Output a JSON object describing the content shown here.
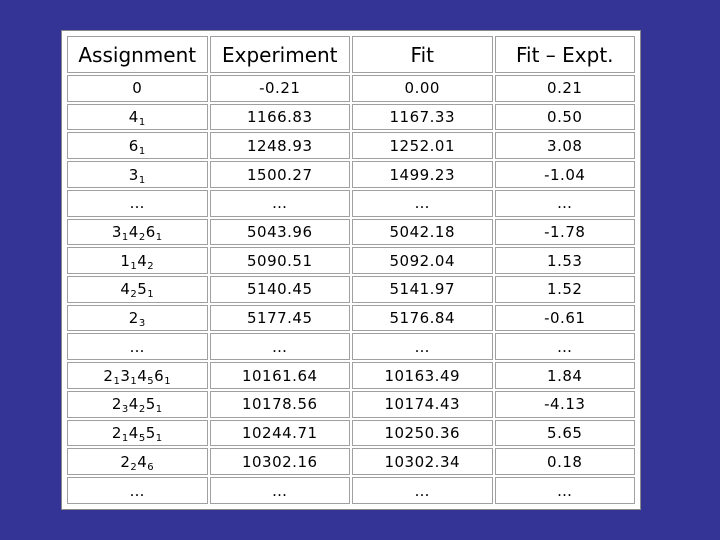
{
  "table": {
    "headers": [
      "Assignment",
      "Experiment",
      "Fit",
      "Fit – Expt."
    ],
    "rows": [
      {
        "assignment": [
          [
            "0",
            ""
          ]
        ],
        "experiment": "-0.21",
        "fit": "0.00",
        "diff": "0.21"
      },
      {
        "assignment": [
          [
            "4",
            "1"
          ]
        ],
        "experiment": "1166.83",
        "fit": "1167.33",
        "diff": "0.50"
      },
      {
        "assignment": [
          [
            "6",
            "1"
          ]
        ],
        "experiment": "1248.93",
        "fit": "1252.01",
        "diff": "3.08"
      },
      {
        "assignment": [
          [
            "3",
            "1"
          ]
        ],
        "experiment": "1500.27",
        "fit": "1499.23",
        "diff": "-1.04"
      },
      {
        "assignment": [
          [
            "…",
            ""
          ]
        ],
        "experiment": "…",
        "fit": "…",
        "diff": "…"
      },
      {
        "assignment": [
          [
            "3",
            "1"
          ],
          [
            "4",
            "2"
          ],
          [
            "6",
            "1"
          ]
        ],
        "experiment": "5043.96",
        "fit": "5042.18",
        "diff": "-1.78"
      },
      {
        "assignment": [
          [
            "1",
            "1"
          ],
          [
            "4",
            "2"
          ]
        ],
        "experiment": "5090.51",
        "fit": "5092.04",
        "diff": "1.53"
      },
      {
        "assignment": [
          [
            "4",
            "2"
          ],
          [
            "5",
            "1"
          ]
        ],
        "experiment": "5140.45",
        "fit": "5141.97",
        "diff": "1.52"
      },
      {
        "assignment": [
          [
            "2",
            "3"
          ]
        ],
        "experiment": "5177.45",
        "fit": "5176.84",
        "diff": "-0.61"
      },
      {
        "assignment": [
          [
            "…",
            ""
          ]
        ],
        "experiment": "…",
        "fit": "…",
        "diff": "…"
      },
      {
        "assignment": [
          [
            "2",
            "1"
          ],
          [
            "3",
            "1"
          ],
          [
            "4",
            "5"
          ],
          [
            "6",
            "1"
          ]
        ],
        "experiment": "10161.64",
        "fit": "10163.49",
        "diff": "1.84"
      },
      {
        "assignment": [
          [
            "2",
            "3"
          ],
          [
            "4",
            "2"
          ],
          [
            "5",
            "1"
          ]
        ],
        "experiment": "10178.56",
        "fit": "10174.43",
        "diff": "-4.13"
      },
      {
        "assignment": [
          [
            "2",
            "1"
          ],
          [
            "4",
            "5"
          ],
          [
            "5",
            "1"
          ]
        ],
        "experiment": "10244.71",
        "fit": "10250.36",
        "diff": "5.65"
      },
      {
        "assignment": [
          [
            "2",
            "2"
          ],
          [
            "4",
            "6"
          ]
        ],
        "experiment": "10302.16",
        "fit": "10302.34",
        "diff": "0.18"
      },
      {
        "assignment": [
          [
            "…",
            ""
          ]
        ],
        "experiment": "…",
        "fit": "…",
        "diff": "…"
      }
    ]
  }
}
